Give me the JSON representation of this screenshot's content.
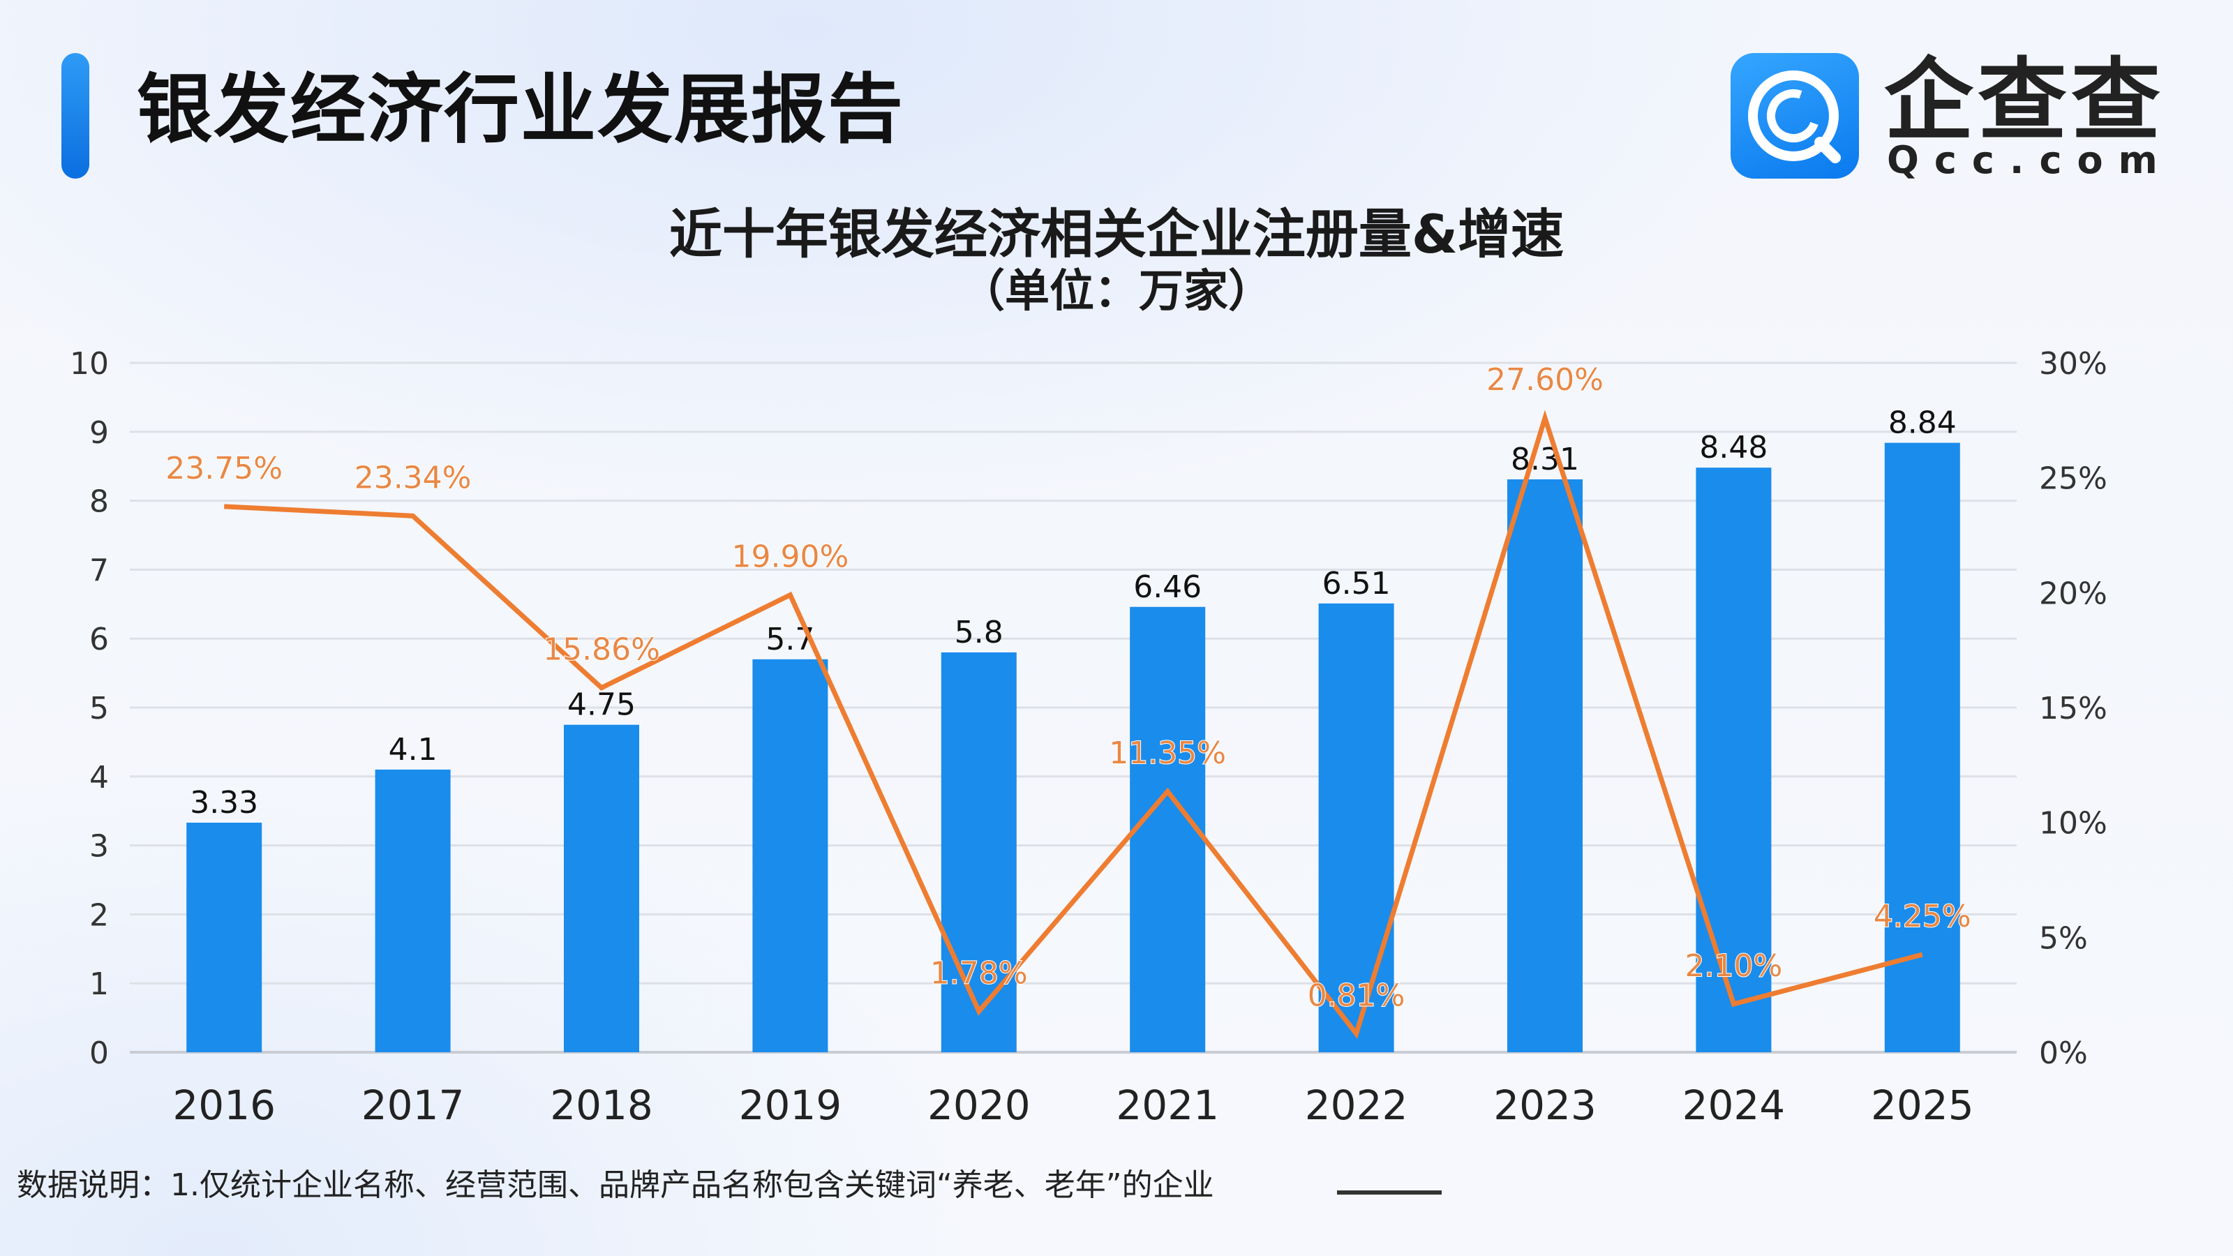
{
  "header": {
    "title": "银发经济行业发展报告",
    "logo_text": "企查查",
    "logo_sub": "Qcc.com"
  },
  "footnote": "数据说明：1.仅统计企业名称、经营范围、品牌产品名称包含关键词“养老、老年”的企业",
  "colors": {
    "accent": "#1a7fe6",
    "bar": "#1a8cec",
    "line": "#ee7d31",
    "line_label": "#e88845"
  },
  "chart_data": {
    "type": "bar+line",
    "title": "近十年银发经济相关企业注册量&增速",
    "subtitle": "（单位：万家）",
    "categories": [
      "2016",
      "2017",
      "2018",
      "2019",
      "2020",
      "2021",
      "2022",
      "2023",
      "2024",
      "2025"
    ],
    "series": [
      {
        "type": "bar",
        "axis": "left",
        "values": [
          3.33,
          4.1,
          4.75,
          5.7,
          5.8,
          6.46,
          6.51,
          8.31,
          8.48,
          8.84
        ],
        "labels": [
          "3.33",
          "4.1",
          "4.75",
          "5.7",
          "5.8",
          "6.46",
          "6.51",
          "8.31",
          "8.48",
          "8.84"
        ]
      },
      {
        "type": "line",
        "axis": "right",
        "values": [
          23.75,
          23.34,
          15.86,
          19.9,
          1.78,
          11.35,
          0.81,
          27.6,
          2.1,
          4.25
        ],
        "labels": [
          "23.75%",
          "23.34%",
          "15.86%",
          "19.90%",
          "1.78%",
          "11.35%",
          "0.81%",
          "27.60%",
          "2.10%",
          "4.25%"
        ]
      }
    ],
    "y_left": {
      "min": 0,
      "max": 10,
      "ticks": [
        "0",
        "1",
        "2",
        "3",
        "4",
        "5",
        "6",
        "7",
        "8",
        "9",
        "10"
      ]
    },
    "y_right": {
      "min": 0,
      "max": 30,
      "ticks": [
        "0%",
        "5%",
        "10%",
        "15%",
        "20%",
        "25%",
        "30%"
      ]
    },
    "grid": true,
    "legend": "none"
  }
}
